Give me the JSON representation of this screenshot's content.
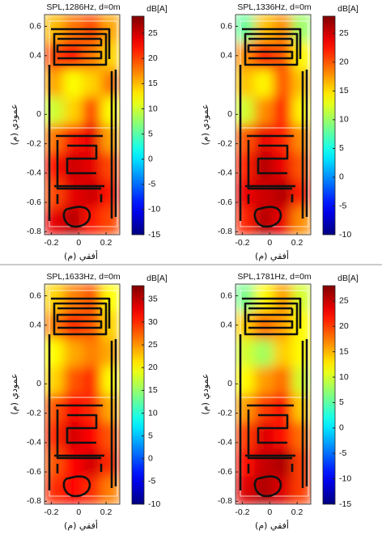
{
  "chart_data": [
    {
      "type": "heatmap",
      "title": "SPL,1286Hz, d=0m",
      "colorbar_label": "dB[A]",
      "xlabel": "أفقي (م)",
      "ylabel": "عمودي (م)",
      "xlim": [
        -0.25,
        0.3
      ],
      "ylim": [
        -0.82,
        0.68
      ],
      "xticks": [
        -0.2,
        0,
        0.2
      ],
      "yticks": [
        0.6,
        0.4,
        0,
        -0.2,
        -0.4,
        -0.6,
        -0.8
      ],
      "clim": [
        -15,
        28.4
      ],
      "cticks": [
        25,
        20,
        15,
        10,
        5,
        0,
        -5,
        -10,
        -15
      ],
      "colormap": "jet",
      "z": [
        [
          15,
          18,
          20,
          16
        ],
        [
          20,
          22,
          18,
          14
        ],
        [
          16,
          12,
          14,
          18
        ],
        [
          10,
          14,
          20,
          12
        ],
        [
          18,
          22,
          24,
          16
        ],
        [
          22,
          25,
          24,
          20
        ],
        [
          20,
          24,
          25,
          22
        ],
        [
          24,
          26,
          22,
          20
        ]
      ]
    },
    {
      "type": "heatmap",
      "title": "SPL,1336Hz, d=0m",
      "colorbar_label": "dB[A]",
      "xlabel": "أفقي (م)",
      "ylabel": "عمودي (م)",
      "xlim": [
        -0.25,
        0.3
      ],
      "ylim": [
        -0.82,
        0.68
      ],
      "xticks": [
        -0.2,
        0,
        0.2
      ],
      "yticks": [
        0.6,
        0.4,
        0,
        -0.2,
        -0.4,
        -0.6,
        -0.8
      ],
      "clim": [
        -10,
        28
      ],
      "cticks": [
        25,
        20,
        15,
        10,
        5,
        0,
        -5,
        -10
      ],
      "colormap": "jet",
      "z": [
        [
          8,
          16,
          18,
          10
        ],
        [
          18,
          22,
          20,
          14
        ],
        [
          16,
          14,
          20,
          16
        ],
        [
          12,
          18,
          22,
          14
        ],
        [
          20,
          24,
          22,
          18
        ],
        [
          22,
          26,
          24,
          20
        ],
        [
          24,
          25,
          26,
          22
        ],
        [
          22,
          26,
          24,
          18
        ]
      ]
    },
    {
      "type": "heatmap",
      "title": "SPL,1633Hz, d=0m",
      "colorbar_label": "dB[A]",
      "xlabel": "أفقي (م)",
      "ylabel": "عمودي (م)",
      "xlim": [
        -0.25,
        0.3
      ],
      "ylim": [
        -0.82,
        0.68
      ],
      "xticks": [
        -0.2,
        0,
        0.2
      ],
      "yticks": [
        0.6,
        0.4,
        0,
        -0.2,
        -0.4,
        -0.6,
        -0.8
      ],
      "clim": [
        -10,
        38
      ],
      "cticks": [
        35,
        30,
        25,
        20,
        15,
        10,
        5,
        0,
        -5,
        -10
      ],
      "colormap": "jet",
      "z": [
        [
          22,
          26,
          28,
          20
        ],
        [
          26,
          30,
          28,
          22
        ],
        [
          20,
          24,
          26,
          24
        ],
        [
          22,
          28,
          30,
          20
        ],
        [
          28,
          32,
          30,
          24
        ],
        [
          30,
          34,
          32,
          28
        ],
        [
          28,
          32,
          34,
          30
        ],
        [
          30,
          32,
          30,
          26
        ]
      ]
    },
    {
      "type": "heatmap",
      "title": "SPL,1781Hz, d=0m",
      "colorbar_label": "dB[A]",
      "xlabel": "أفقي (م)",
      "ylabel": "عمودي (م)",
      "xlim": [
        -0.25,
        0.3
      ],
      "ylim": [
        -0.82,
        0.68
      ],
      "xticks": [
        -0.2,
        0,
        0.2
      ],
      "yticks": [
        0.6,
        0.4,
        0,
        -0.2,
        -0.4,
        -0.6,
        -0.8
      ],
      "clim": [
        -15,
        28
      ],
      "cticks": [
        25,
        20,
        15,
        10,
        5,
        0,
        -5,
        -10,
        -15
      ],
      "colormap": "jet",
      "z": [
        [
          6,
          12,
          16,
          10
        ],
        [
          14,
          18,
          16,
          12
        ],
        [
          10,
          8,
          14,
          12
        ],
        [
          12,
          16,
          18,
          10
        ],
        [
          16,
          20,
          22,
          14
        ],
        [
          20,
          24,
          22,
          18
        ],
        [
          22,
          25,
          26,
          20
        ],
        [
          24,
          26,
          24,
          20
        ]
      ]
    }
  ]
}
